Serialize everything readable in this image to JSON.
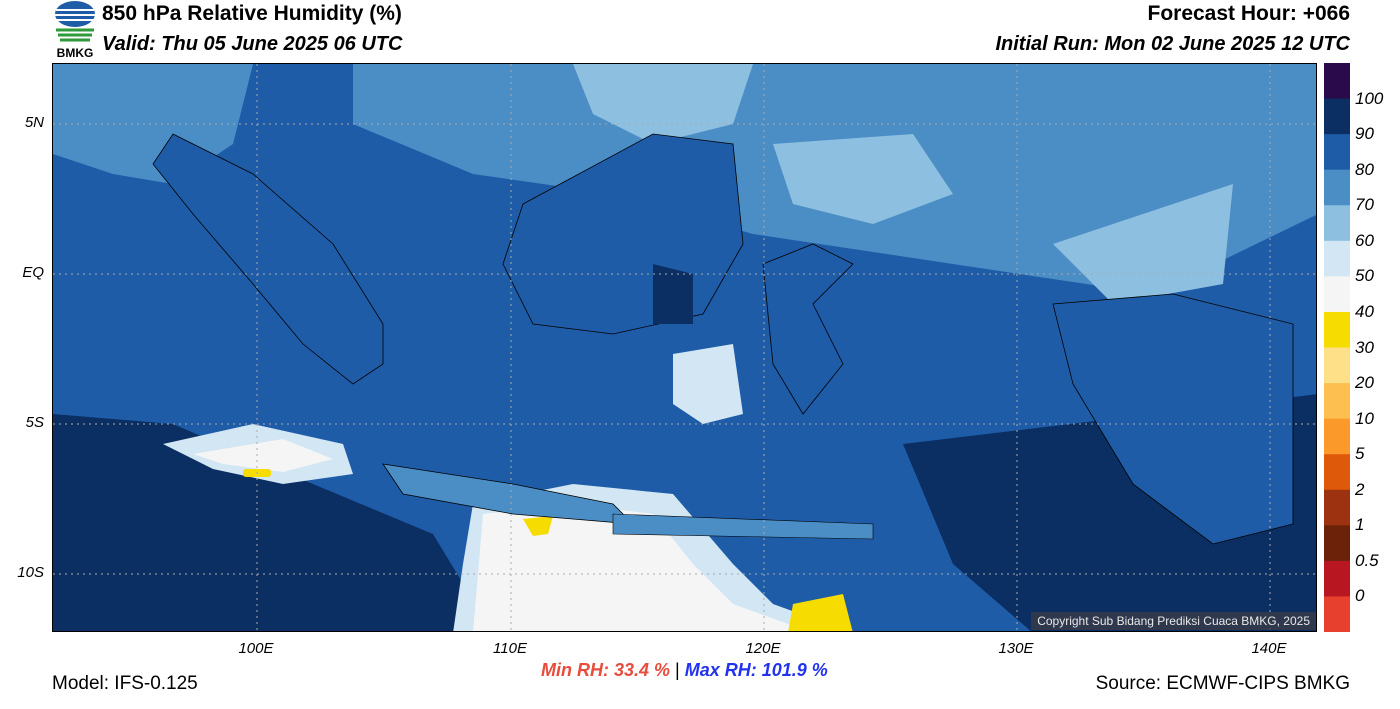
{
  "header": {
    "title": "850 hPa Relative Humidity (%)",
    "valid": "Valid: Thu 05 June 2025 06 UTC",
    "forecast_hour": "Forecast Hour: +066",
    "initial_run": "Initial Run: Mon 02 June 2025 12 UTC",
    "logo_text": "BMKG"
  },
  "map": {
    "lat_labels": [
      "5N",
      "EQ",
      "5S",
      "10S"
    ],
    "lon_labels": [
      "100E",
      "110E",
      "120E",
      "130E",
      "140E"
    ],
    "copyright": "Copyright Sub Bidang Prediksi Cuaca BMKG, 2025"
  },
  "colorbar": {
    "labels": [
      "100",
      "90",
      "80",
      "70",
      "60",
      "50",
      "40",
      "30",
      "20",
      "10",
      "5",
      "2",
      "1",
      "0.5",
      "0"
    ],
    "colors": [
      "#2a0a4a",
      "#0b2f63",
      "#1f5ca8",
      "#4b8ec6",
      "#8dbfe0",
      "#d2e6f3",
      "#f5f5f5",
      "#f7dc00",
      "#fee088",
      "#fdc050",
      "#fb9a2a",
      "#de5a0a",
      "#9c3210",
      "#6b2208",
      "#b81620",
      "#e8402f"
    ]
  },
  "stats": {
    "min": "Min RH:  33.4 %",
    "separator": "|",
    "max": "Max RH: 101.9 %"
  },
  "footer": {
    "model": "Model: IFS-0.125",
    "source": "Source: ECMWF-CIPS BMKG"
  }
}
